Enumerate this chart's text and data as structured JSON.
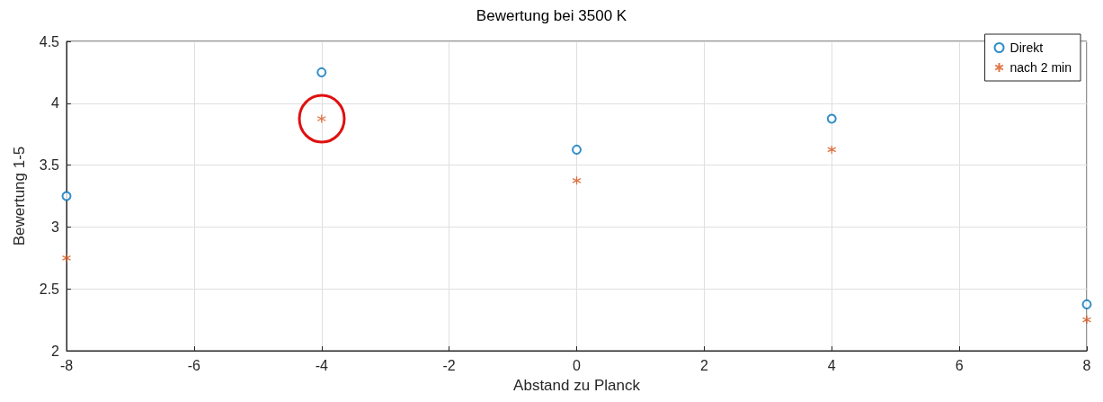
{
  "chart_data": {
    "type": "scatter",
    "title": "Bewertung bei 3500 K",
    "xlabel": "Abstand zu Planck",
    "ylabel": "Bewertung 1-5",
    "x": [
      -8,
      -4,
      0,
      4,
      8
    ],
    "series": [
      {
        "name": "Direkt",
        "color": "#0072bd",
        "marker": "circle",
        "values": [
          3.25,
          4.25,
          3.625,
          3.875,
          2.375
        ]
      },
      {
        "name": "nach 2 min",
        "color": "#d95319",
        "marker": "cross",
        "values": [
          2.75,
          3.875,
          3.375,
          3.625,
          2.25
        ]
      }
    ],
    "xlim": [
      -8,
      8
    ],
    "xticks": [
      -8,
      -6,
      -4,
      -2,
      0,
      2,
      4,
      6,
      8
    ],
    "ylim": [
      2,
      4.5
    ],
    "yticks": [
      2,
      2.5,
      3,
      3.5,
      4,
      4.5
    ],
    "grid": true,
    "legend": "top right"
  }
}
